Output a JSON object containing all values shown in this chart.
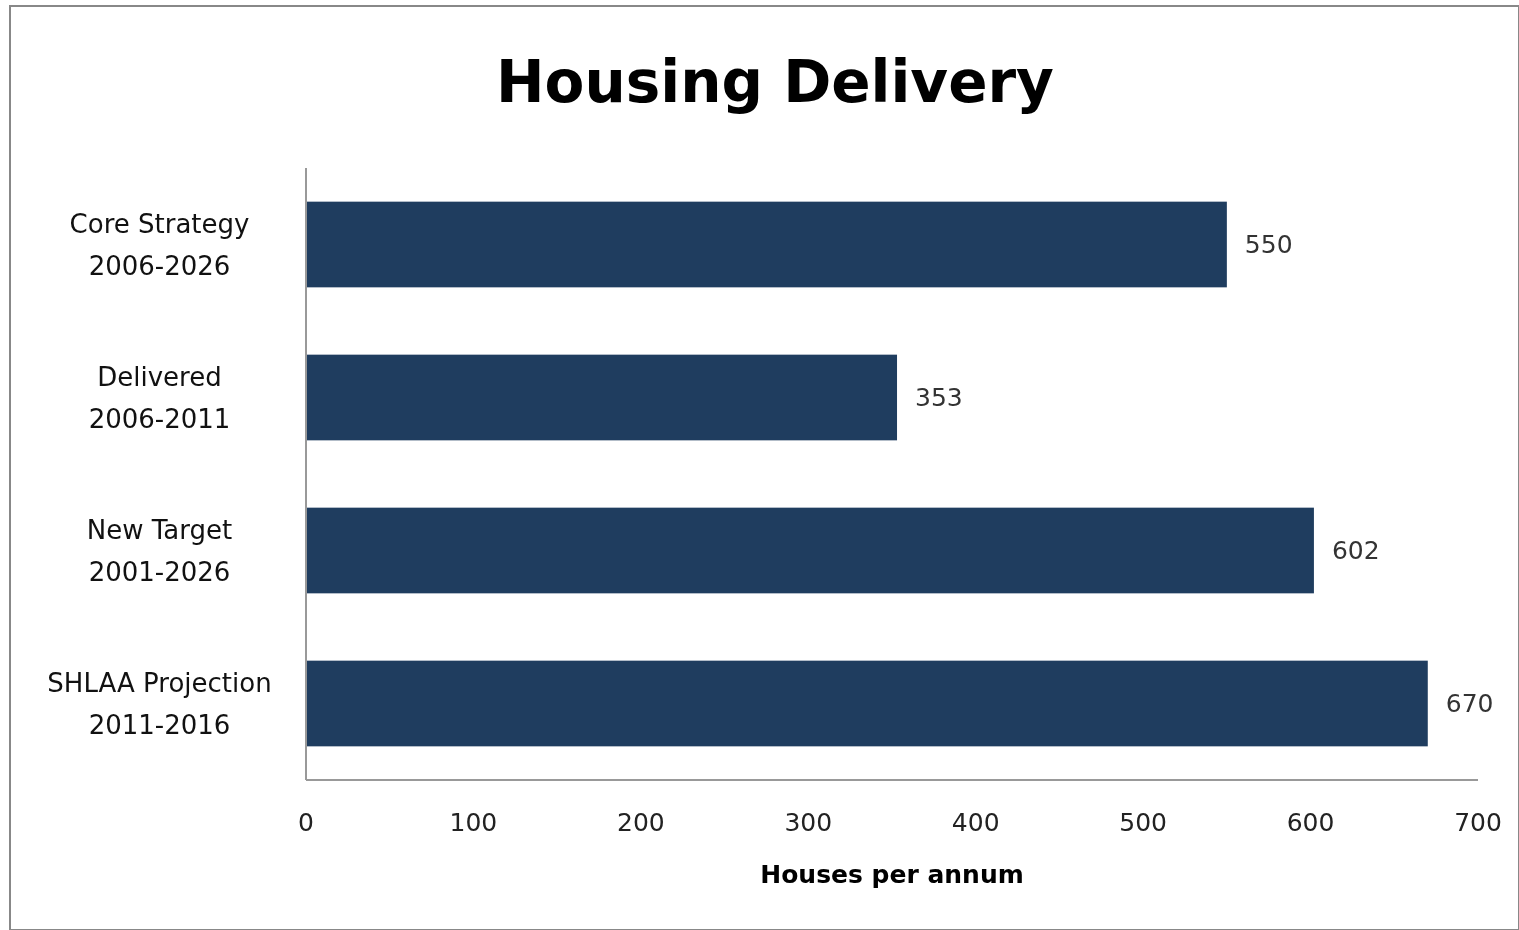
{
  "chart_data": {
    "type": "bar",
    "orientation": "horizontal",
    "title": "Housing Delivery",
    "xlabel": "Houses per annum",
    "categories": [
      "Core Strategy 2006-2026",
      "Delivered 2006-2011",
      "New Target 2001-2026",
      "SHLAA Projection 2011-2016"
    ],
    "values": [
      550,
      353,
      602,
      670
    ],
    "color": "#1f3d5f",
    "xlim": [
      0,
      700
    ],
    "xticks": [
      0,
      100,
      200,
      300,
      400,
      500,
      600,
      700
    ],
    "data_labels": true,
    "grid": false
  }
}
